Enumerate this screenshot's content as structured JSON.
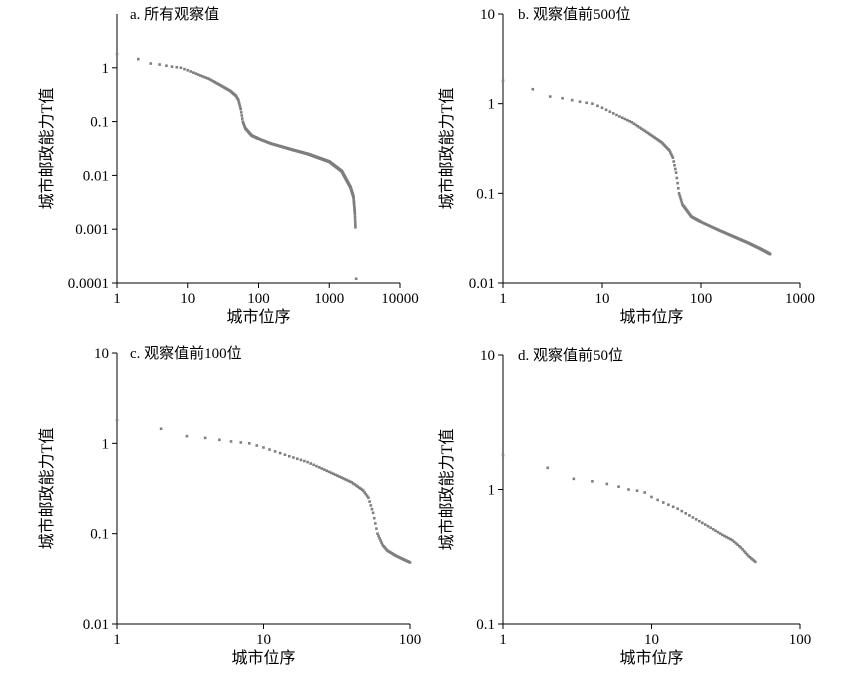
{
  "chart_data": [
    {
      "type": "scatter",
      "title": "a. 所有观察值",
      "xlabel": "城市位序",
      "ylabel": "城市邮政能力T值",
      "xscale": "log",
      "yscale": "log",
      "xlim": [
        1,
        10000
      ],
      "ylim": [
        0.0001,
        10
      ],
      "xticks": [
        1,
        10,
        100,
        1000,
        10000
      ],
      "xtick_labels": [
        "1",
        "10",
        "100",
        "1000",
        "10000"
      ],
      "yticks": [
        0.0001,
        0.001,
        0.01,
        0.1,
        1
      ],
      "ytick_labels": [
        "0.0001",
        "0.001",
        "0.01",
        "0.1",
        "1"
      ],
      "marker_color": "#7f7f7f",
      "curve": [
        [
          1,
          1.8
        ],
        [
          2,
          1.45
        ],
        [
          3,
          1.2
        ],
        [
          4,
          1.15
        ],
        [
          6,
          1.05
        ],
        [
          8,
          1.0
        ],
        [
          10,
          0.9
        ],
        [
          15,
          0.72
        ],
        [
          20,
          0.62
        ],
        [
          30,
          0.46
        ],
        [
          40,
          0.37
        ],
        [
          48,
          0.3
        ],
        [
          52,
          0.25
        ],
        [
          56,
          0.17
        ],
        [
          60,
          0.1
        ],
        [
          65,
          0.075
        ],
        [
          80,
          0.055
        ],
        [
          100,
          0.048
        ],
        [
          150,
          0.039
        ],
        [
          200,
          0.035
        ],
        [
          300,
          0.03
        ],
        [
          500,
          0.025
        ],
        [
          800,
          0.02
        ],
        [
          1000,
          0.018
        ],
        [
          1500,
          0.012
        ],
        [
          2000,
          0.006
        ],
        [
          2200,
          0.004
        ],
        [
          2300,
          0.002
        ],
        [
          2350,
          0.001
        ]
      ],
      "outliers": [
        [
          2400,
          0.00012
        ]
      ]
    },
    {
      "type": "scatter",
      "title": "b. 观察值前500位",
      "xlabel": "城市位序",
      "ylabel": "城市邮政能力T值",
      "xscale": "log",
      "yscale": "log",
      "xlim": [
        1,
        1000
      ],
      "ylim": [
        0.01,
        10
      ],
      "xticks": [
        1,
        10,
        100,
        1000
      ],
      "xtick_labels": [
        "1",
        "10",
        "100",
        "1000"
      ],
      "yticks": [
        0.01,
        0.1,
        1,
        10
      ],
      "ytick_labels": [
        "0.01",
        "0.1",
        "1",
        "10"
      ],
      "marker_color": "#7f7f7f",
      "curve": [
        [
          1,
          1.8
        ],
        [
          2,
          1.45
        ],
        [
          3,
          1.2
        ],
        [
          4,
          1.15
        ],
        [
          6,
          1.05
        ],
        [
          8,
          1.0
        ],
        [
          10,
          0.9
        ],
        [
          15,
          0.72
        ],
        [
          20,
          0.62
        ],
        [
          30,
          0.46
        ],
        [
          40,
          0.37
        ],
        [
          48,
          0.3
        ],
        [
          52,
          0.25
        ],
        [
          56,
          0.17
        ],
        [
          60,
          0.1
        ],
        [
          65,
          0.075
        ],
        [
          80,
          0.055
        ],
        [
          100,
          0.048
        ],
        [
          150,
          0.039
        ],
        [
          200,
          0.034
        ],
        [
          300,
          0.028
        ],
        [
          400,
          0.024
        ],
        [
          500,
          0.021
        ]
      ],
      "outliers": []
    },
    {
      "type": "scatter",
      "title": "c. 观察值前100位",
      "xlabel": "城市位序",
      "ylabel": "城市邮政能力T值",
      "xscale": "log",
      "yscale": "log",
      "xlim": [
        1,
        100
      ],
      "ylim": [
        0.01,
        10
      ],
      "xticks": [
        1,
        10,
        100
      ],
      "xtick_labels": [
        "1",
        "10",
        "100"
      ],
      "yticks": [
        0.01,
        0.1,
        1,
        10
      ],
      "ytick_labels": [
        "0.01",
        "0.1",
        "1",
        "10"
      ],
      "marker_color": "#7f7f7f",
      "curve": [
        [
          1,
          1.8
        ],
        [
          2,
          1.45
        ],
        [
          3,
          1.2
        ],
        [
          4,
          1.15
        ],
        [
          6,
          1.05
        ],
        [
          8,
          1.0
        ],
        [
          10,
          0.9
        ],
        [
          15,
          0.72
        ],
        [
          20,
          0.62
        ],
        [
          30,
          0.46
        ],
        [
          40,
          0.37
        ],
        [
          48,
          0.3
        ],
        [
          52,
          0.25
        ],
        [
          56,
          0.17
        ],
        [
          60,
          0.1
        ],
        [
          65,
          0.075
        ],
        [
          70,
          0.065
        ],
        [
          80,
          0.057
        ],
        [
          90,
          0.052
        ],
        [
          100,
          0.048
        ]
      ],
      "outliers": []
    },
    {
      "type": "scatter",
      "title": "d. 观察值前50位",
      "xlabel": "城市位序",
      "ylabel": "城市邮政能力T值",
      "xscale": "log",
      "yscale": "log",
      "xlim": [
        1,
        100
      ],
      "ylim": [
        0.1,
        10
      ],
      "xticks": [
        1,
        10,
        100
      ],
      "xtick_labels": [
        "1",
        "10",
        "100"
      ],
      "yticks": [
        0.1,
        1,
        10
      ],
      "ytick_labels": [
        "0.1",
        "1",
        "10"
      ],
      "marker_color": "#7f7f7f",
      "curve": [
        [
          1,
          1.8
        ],
        [
          2,
          1.45
        ],
        [
          3,
          1.2
        ],
        [
          4,
          1.15
        ],
        [
          5,
          1.1
        ],
        [
          6,
          1.05
        ],
        [
          7,
          1.0
        ],
        [
          8,
          0.98
        ],
        [
          9,
          0.95
        ],
        [
          10,
          0.88
        ],
        [
          12,
          0.8
        ],
        [
          15,
          0.72
        ],
        [
          20,
          0.6
        ],
        [
          25,
          0.52
        ],
        [
          30,
          0.46
        ],
        [
          35,
          0.42
        ],
        [
          40,
          0.37
        ],
        [
          45,
          0.32
        ],
        [
          50,
          0.29
        ]
      ],
      "outliers": []
    }
  ]
}
